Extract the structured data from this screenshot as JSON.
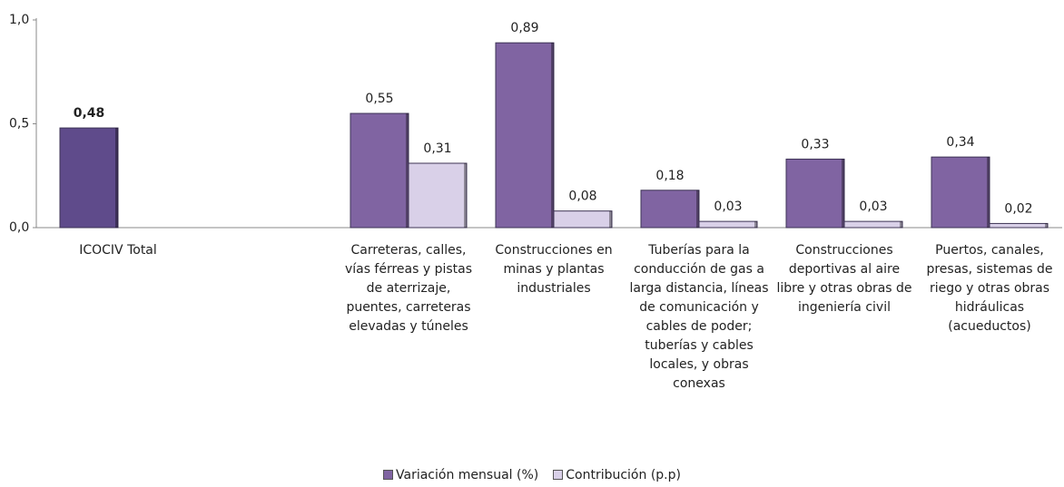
{
  "chart_data": {
    "type": "bar",
    "categories": [
      "ICOCIV Total",
      null,
      "Carreteras, calles, vías férreas y pistas de aterrizaje, puentes, carreteras elevadas y túneles",
      "Construcciones  en minas y plantas industriales",
      "Tuberías para la conducción de gas a larga distancia, líneas de comunicación y cables de poder; tuberías y cables locales, y obras conexas",
      "Construcciones deportivas al aire libre y otras obras de ingeniería civil",
      "Puertos, canales, presas, sistemas de riego y otras obras hidráulicas (acueductos)"
    ],
    "series": [
      {
        "name": "Variación mensual (%)",
        "color": "#8064a2",
        "colors": [
          "#5f4b8b",
          null,
          "#8064a2",
          "#8064a2",
          "#8064a2",
          "#8064a2",
          "#8064a2"
        ],
        "values": [
          0.48,
          null,
          0.55,
          0.89,
          0.18,
          0.33,
          0.34
        ],
        "value_labels": [
          "0,48",
          null,
          "0,55",
          "0,89",
          "0,18",
          "0,33",
          "0,34"
        ]
      },
      {
        "name": "Contribución (p.p)",
        "color": "#d9d0e8",
        "values": [
          null,
          null,
          0.31,
          0.08,
          0.03,
          0.03,
          0.02
        ],
        "value_labels": [
          null,
          null,
          "0,31",
          "0,08",
          "0,03",
          "0,03",
          "0,02"
        ]
      }
    ],
    "ylim": [
      0,
      1
    ],
    "yticks": [
      {
        "value": 0,
        "label": "0,0"
      },
      {
        "value": 0.5,
        "label": "0,5"
      },
      {
        "value": 1,
        "label": "1,0"
      }
    ],
    "grid": false,
    "legend": "bottom"
  }
}
